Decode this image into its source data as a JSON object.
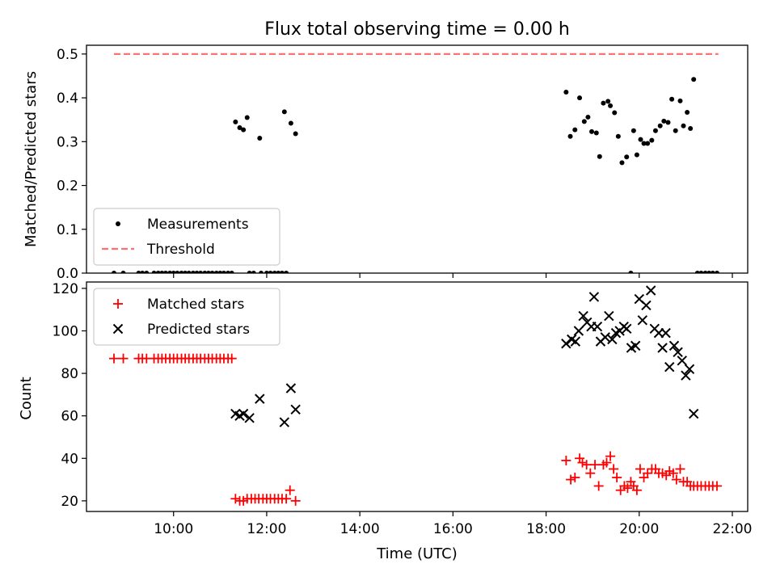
{
  "title": "Flux total observing time = 0.00 h",
  "chart_data": [
    {
      "type": "scatter",
      "ylabel": "Matched/Predicted stars",
      "ylim": [
        0,
        0.52
      ],
      "yticks": [
        0.0,
        0.1,
        0.2,
        0.3,
        0.4,
        0.5
      ],
      "ytick_labels": [
        "0.0",
        "0.1",
        "0.2",
        "0.3",
        "0.4",
        "0.5"
      ],
      "legend_position": "lower-left",
      "series": [
        {
          "name": "Measurements",
          "marker": "dot",
          "color": "#000000",
          "points": [
            [
              8.72,
              0
            ],
            [
              8.92,
              0
            ],
            [
              9.25,
              0
            ],
            [
              9.33,
              0
            ],
            [
              9.42,
              0
            ],
            [
              9.58,
              0
            ],
            [
              9.67,
              0
            ],
            [
              9.75,
              0
            ],
            [
              9.83,
              0
            ],
            [
              9.92,
              0
            ],
            [
              10.0,
              0
            ],
            [
              10.08,
              0
            ],
            [
              10.17,
              0
            ],
            [
              10.25,
              0
            ],
            [
              10.33,
              0
            ],
            [
              10.42,
              0
            ],
            [
              10.5,
              0
            ],
            [
              10.58,
              0
            ],
            [
              10.67,
              0
            ],
            [
              10.75,
              0
            ],
            [
              10.83,
              0
            ],
            [
              10.92,
              0
            ],
            [
              11.0,
              0
            ],
            [
              11.08,
              0
            ],
            [
              11.17,
              0
            ],
            [
              11.25,
              0
            ],
            [
              11.33,
              0.345
            ],
            [
              11.42,
              0.332
            ],
            [
              11.5,
              0.327
            ],
            [
              11.58,
              0.355
            ],
            [
              11.63,
              0
            ],
            [
              11.72,
              0
            ],
            [
              11.85,
              0.308
            ],
            [
              11.88,
              0
            ],
            [
              12.0,
              0
            ],
            [
              12.08,
              0
            ],
            [
              12.17,
              0
            ],
            [
              12.25,
              0
            ],
            [
              12.33,
              0
            ],
            [
              12.38,
              0.368
            ],
            [
              12.42,
              0
            ],
            [
              12.52,
              0.342
            ],
            [
              12.62,
              0.318
            ],
            [
              18.43,
              0.413
            ],
            [
              18.52,
              0.312
            ],
            [
              18.62,
              0.327
            ],
            [
              18.72,
              0.4
            ],
            [
              18.82,
              0.346
            ],
            [
              18.9,
              0.356
            ],
            [
              18.98,
              0.323
            ],
            [
              19.08,
              0.32
            ],
            [
              19.15,
              0.266
            ],
            [
              19.23,
              0.388
            ],
            [
              19.33,
              0.392
            ],
            [
              19.38,
              0.382
            ],
            [
              19.47,
              0.366
            ],
            [
              19.55,
              0.312
            ],
            [
              19.63,
              0.252
            ],
            [
              19.73,
              0.265
            ],
            [
              19.82,
              0
            ],
            [
              19.88,
              0.325
            ],
            [
              19.95,
              0.27
            ],
            [
              20.03,
              0.305
            ],
            [
              20.1,
              0.296
            ],
            [
              20.18,
              0.296
            ],
            [
              20.27,
              0.303
            ],
            [
              20.35,
              0.325
            ],
            [
              20.45,
              0.336
            ],
            [
              20.53,
              0.347
            ],
            [
              20.62,
              0.344
            ],
            [
              20.7,
              0.397
            ],
            [
              20.78,
              0.325
            ],
            [
              20.88,
              0.393
            ],
            [
              20.95,
              0.336
            ],
            [
              21.03,
              0.367
            ],
            [
              21.1,
              0.33
            ],
            [
              21.17,
              0.442
            ],
            [
              21.25,
              0
            ],
            [
              21.33,
              0
            ],
            [
              21.42,
              0
            ],
            [
              21.5,
              0
            ],
            [
              21.58,
              0
            ],
            [
              21.67,
              0
            ]
          ]
        },
        {
          "name": "Threshold",
          "marker": "dashed-line",
          "color": "#ff7070",
          "points": [
            [
              8.72,
              0.5
            ],
            [
              21.7,
              0.5
            ]
          ]
        }
      ]
    },
    {
      "type": "scatter",
      "xlabel": "Time (UTC)",
      "ylabel": "Count",
      "xlim": [
        8.13,
        22.33
      ],
      "ylim": [
        15,
        123
      ],
      "xticks": [
        10,
        12,
        14,
        16,
        18,
        20,
        22
      ],
      "xtick_labels": [
        "10:00",
        "12:00",
        "14:00",
        "16:00",
        "18:00",
        "20:00",
        "22:00"
      ],
      "yticks": [
        20,
        40,
        60,
        80,
        100,
        120
      ],
      "ytick_labels": [
        "20",
        "40",
        "60",
        "80",
        "100",
        "120"
      ],
      "legend_position": "upper-left",
      "series": [
        {
          "name": "Matched stars",
          "marker": "plus",
          "color": "#ff0000",
          "points": [
            [
              8.72,
              87
            ],
            [
              8.92,
              87
            ],
            [
              9.25,
              87
            ],
            [
              9.33,
              87
            ],
            [
              9.42,
              87
            ],
            [
              9.58,
              87
            ],
            [
              9.67,
              87
            ],
            [
              9.75,
              87
            ],
            [
              9.83,
              87
            ],
            [
              9.92,
              87
            ],
            [
              10.0,
              87
            ],
            [
              10.08,
              87
            ],
            [
              10.17,
              87
            ],
            [
              10.25,
              87
            ],
            [
              10.33,
              87
            ],
            [
              10.42,
              87
            ],
            [
              10.5,
              87
            ],
            [
              10.58,
              87
            ],
            [
              10.67,
              87
            ],
            [
              10.75,
              87
            ],
            [
              10.83,
              87
            ],
            [
              10.92,
              87
            ],
            [
              11.0,
              87
            ],
            [
              11.08,
              87
            ],
            [
              11.17,
              87
            ],
            [
              11.25,
              87
            ],
            [
              11.33,
              21
            ],
            [
              11.42,
              20
            ],
            [
              11.5,
              20
            ],
            [
              11.58,
              21
            ],
            [
              11.67,
              21
            ],
            [
              11.75,
              21
            ],
            [
              11.83,
              21
            ],
            [
              11.92,
              21
            ],
            [
              12.0,
              21
            ],
            [
              12.08,
              21
            ],
            [
              12.17,
              21
            ],
            [
              12.25,
              21
            ],
            [
              12.33,
              21
            ],
            [
              12.42,
              21
            ],
            [
              12.5,
              25
            ],
            [
              12.62,
              20
            ],
            [
              18.43,
              39
            ],
            [
              18.53,
              30
            ],
            [
              18.62,
              31
            ],
            [
              18.72,
              40
            ],
            [
              18.78,
              38
            ],
            [
              18.87,
              37
            ],
            [
              18.95,
              33
            ],
            [
              19.05,
              37
            ],
            [
              19.13,
              27
            ],
            [
              19.23,
              37
            ],
            [
              19.3,
              38
            ],
            [
              19.38,
              41
            ],
            [
              19.45,
              35
            ],
            [
              19.52,
              31
            ],
            [
              19.6,
              25
            ],
            [
              19.68,
              27
            ],
            [
              19.75,
              26
            ],
            [
              19.82,
              29
            ],
            [
              19.88,
              27
            ],
            [
              19.95,
              25
            ],
            [
              20.02,
              35
            ],
            [
              20.1,
              31
            ],
            [
              20.18,
              33
            ],
            [
              20.27,
              35
            ],
            [
              20.35,
              35
            ],
            [
              20.42,
              33
            ],
            [
              20.5,
              33
            ],
            [
              20.58,
              32
            ],
            [
              20.65,
              34
            ],
            [
              20.73,
              33
            ],
            [
              20.8,
              30
            ],
            [
              20.88,
              35
            ],
            [
              20.95,
              29
            ],
            [
              21.03,
              29
            ],
            [
              21.1,
              27
            ],
            [
              21.17,
              27
            ],
            [
              21.25,
              27
            ],
            [
              21.33,
              27
            ],
            [
              21.42,
              27
            ],
            [
              21.5,
              27
            ],
            [
              21.58,
              27
            ],
            [
              21.67,
              27
            ]
          ]
        },
        {
          "name": "Predicted stars",
          "marker": "x",
          "color": "#000000",
          "points": [
            [
              11.33,
              61
            ],
            [
              11.42,
              60
            ],
            [
              11.5,
              61
            ],
            [
              11.63,
              59
            ],
            [
              11.85,
              68
            ],
            [
              12.38,
              57
            ],
            [
              12.52,
              73
            ],
            [
              12.62,
              63
            ],
            [
              18.43,
              94
            ],
            [
              18.55,
              96
            ],
            [
              18.63,
              95
            ],
            [
              18.7,
              100
            ],
            [
              18.8,
              107
            ],
            [
              18.88,
              104
            ],
            [
              18.97,
              102
            ],
            [
              19.03,
              116
            ],
            [
              19.1,
              102
            ],
            [
              19.17,
              95
            ],
            [
              19.27,
              97
            ],
            [
              19.35,
              107
            ],
            [
              19.42,
              96
            ],
            [
              19.5,
              99
            ],
            [
              19.58,
              100
            ],
            [
              19.67,
              102
            ],
            [
              19.73,
              101
            ],
            [
              19.83,
              92
            ],
            [
              19.92,
              93
            ],
            [
              20.0,
              115
            ],
            [
              20.07,
              105
            ],
            [
              20.15,
              112
            ],
            [
              20.25,
              119
            ],
            [
              20.33,
              101
            ],
            [
              20.42,
              99
            ],
            [
              20.5,
              92
            ],
            [
              20.57,
              99
            ],
            [
              20.65,
              83
            ],
            [
              20.75,
              93
            ],
            [
              20.83,
              90
            ],
            [
              20.92,
              86
            ],
            [
              21.0,
              79
            ],
            [
              21.08,
              82
            ],
            [
              21.17,
              61
            ]
          ]
        }
      ]
    }
  ]
}
